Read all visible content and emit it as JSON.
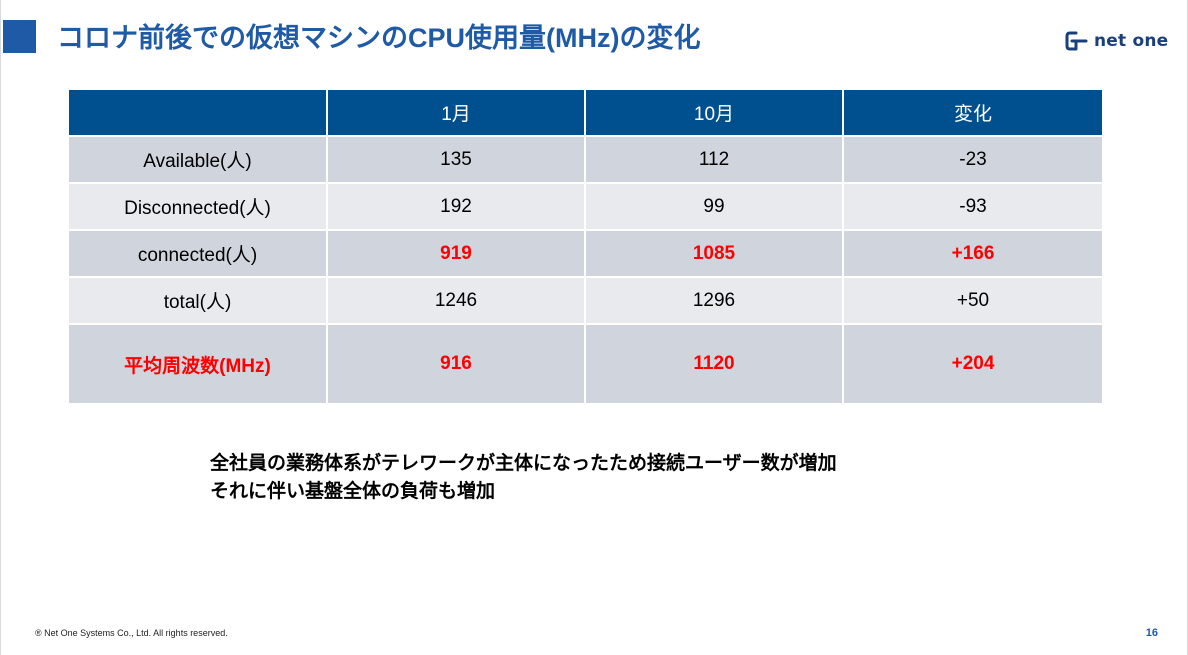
{
  "slide": {
    "title": "コロナ前後での仮想マシンのCPU使用量(MHz)の変化",
    "logo_text": "net one",
    "copyright": "® Net One Systems Co., Ltd. All rights reserved.",
    "page_number": "16",
    "accent_color": "#1f5aa6",
    "highlight_color": "#ff0000"
  },
  "table": {
    "headers": [
      "",
      "1月",
      "10月",
      "変化"
    ],
    "rows": [
      {
        "label": "Available(人)",
        "values": [
          "135",
          "112",
          "-23"
        ]
      },
      {
        "label": "Disconnected(人)",
        "values": [
          "192",
          "99",
          "-93"
        ]
      },
      {
        "label": "connected(人)",
        "values": [
          "919",
          "1085",
          "+166"
        ]
      },
      {
        "label": "total(人)",
        "values": [
          "1246",
          "1296",
          "+50"
        ]
      },
      {
        "label": "平均周波数(MHz)",
        "values": [
          "916",
          "1120",
          "+204"
        ]
      }
    ]
  },
  "note": {
    "line1": "全社員の業務体系がテレワークが主体になったため接続ユーザー数が増加",
    "line2": "それに伴い基盤全体の負荷も増加"
  }
}
